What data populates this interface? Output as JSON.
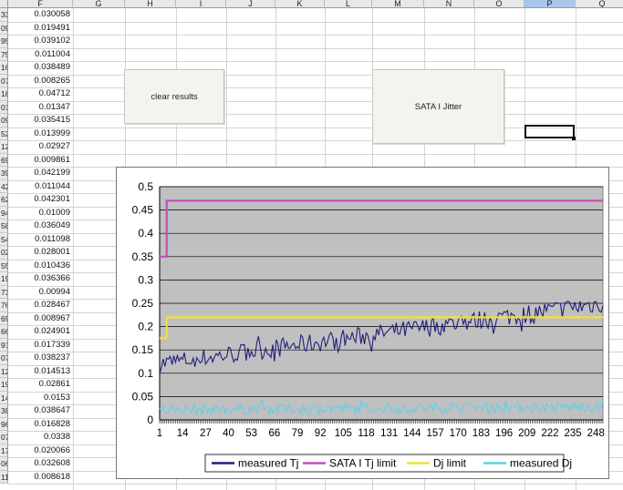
{
  "columns": [
    "F",
    "G",
    "H",
    "I",
    "J",
    "K",
    "L",
    "M",
    "N",
    "O",
    "P",
    "Q"
  ],
  "selected_column": "P",
  "rows": [
    {
      "n": "33",
      "v": "0.030058"
    },
    {
      "n": "09",
      "v": "0.019491"
    },
    {
      "n": "95",
      "v": "0.039102"
    },
    {
      "n": "75",
      "v": "0.011004"
    },
    {
      "n": "16",
      "v": "0.038489"
    },
    {
      "n": "07",
      "v": "0.008265"
    },
    {
      "n": "18",
      "v": "0.04712"
    },
    {
      "n": "01",
      "v": "0.01347"
    },
    {
      "n": "09",
      "v": "0.035415"
    },
    {
      "n": "52",
      "v": "0.013999"
    },
    {
      "n": "12",
      "v": "0.02927"
    },
    {
      "n": "69",
      "v": "0.009861"
    },
    {
      "n": "39",
      "v": "0.042199"
    },
    {
      "n": "42",
      "v": "0.011044"
    },
    {
      "n": "62",
      "v": "0.042301"
    },
    {
      "n": "94",
      "v": "0.01009"
    },
    {
      "n": "58",
      "v": "0.036049"
    },
    {
      "n": "54",
      "v": "0.011098"
    },
    {
      "n": "02",
      "v": "0.028001"
    },
    {
      "n": "55",
      "v": "0.010436"
    },
    {
      "n": "19",
      "v": "0.036366"
    },
    {
      "n": "73",
      "v": "0.00994"
    },
    {
      "n": "76",
      "v": "0.028467"
    },
    {
      "n": "69",
      "v": "0.008967"
    },
    {
      "n": "66",
      "v": "0.024901"
    },
    {
      "n": "91",
      "v": "0.017339"
    },
    {
      "n": "07",
      "v": "0.038237"
    },
    {
      "n": "12",
      "v": "0.014513"
    },
    {
      "n": "19",
      "v": "0.02861"
    },
    {
      "n": "14",
      "v": "0.0153"
    },
    {
      "n": "38",
      "v": "0.038647"
    },
    {
      "n": "96",
      "v": "0.016828"
    },
    {
      "n": "07",
      "v": "0.0338"
    },
    {
      "n": "17",
      "v": "0.020066"
    },
    {
      "n": "06",
      "v": "0.032608"
    },
    {
      "n": "11",
      "v": "0.008618"
    }
  ],
  "buttons": {
    "clear_results": "clear results",
    "sata_jitter": "SATA I Jitter"
  },
  "chart_data": {
    "type": "line",
    "title": "",
    "xlabel": "",
    "ylabel": "",
    "ylim": [
      0,
      0.5
    ],
    "y_ticks": [
      "0",
      "0.05",
      "0.1",
      "0.15",
      "0.2",
      "0.25",
      "0.3",
      "0.35",
      "0.4",
      "0.45",
      "0.5"
    ],
    "x_range": [
      1,
      252
    ],
    "x_tick_labels": [
      "1",
      "14",
      "27",
      "40",
      "53",
      "66",
      "79",
      "92",
      "105",
      "118",
      "131",
      "144",
      "157",
      "170",
      "183",
      "196",
      "209",
      "222",
      "235",
      "248"
    ],
    "grid": true,
    "legend_position": "bottom",
    "series": [
      {
        "name": "measured Tj",
        "color": "#1f1f7a",
        "kind": "noisy",
        "start": 0.12,
        "end": 0.25,
        "noise": 0.013
      },
      {
        "name": "SATA I Tj limit",
        "color": "#c050b8",
        "kind": "step",
        "initial": 0.35,
        "step_at": 5,
        "value": 0.47
      },
      {
        "name": "Dj limit",
        "color": "#f2e03a",
        "kind": "step",
        "initial": 0.175,
        "step_at": 5,
        "value": 0.22
      },
      {
        "name": "measured Dj",
        "color": "#5fd0e8",
        "kind": "noisy",
        "start": 0.022,
        "end": 0.028,
        "noise": 0.007
      }
    ]
  }
}
